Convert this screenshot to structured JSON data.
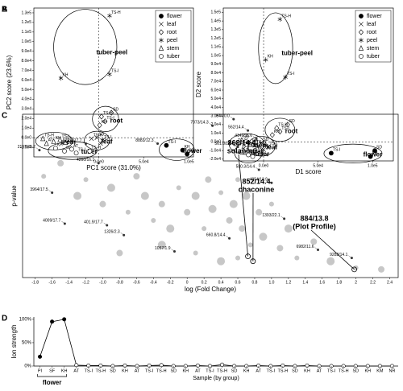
{
  "chart_data": [
    {
      "type": "pca",
      "panel_label": "A",
      "xlabel": "PC1 score (31.0%)",
      "ylabel": "PC2 score (23.6%)",
      "xlim": [
        -72000,
        105000
      ],
      "ylim": [
        -20000,
        135000
      ],
      "xticks": [
        {
          "value": 0,
          "label": "0.0e0"
        },
        {
          "value": 50000,
          "label": "5.0e4"
        },
        {
          "value": 100000,
          "label": "1.0e5"
        }
      ],
      "yticks": [
        {
          "value": -10000,
          "label": "-1.0e4"
        },
        {
          "value": 0,
          "label": "0.0e0"
        },
        {
          "value": 10000,
          "label": "1.0e4"
        },
        {
          "value": 20000,
          "label": "2.0e4"
        },
        {
          "value": 30000,
          "label": "3.0e4"
        },
        {
          "value": 40000,
          "label": "4.0e4"
        },
        {
          "value": 50000,
          "label": "5.0e4"
        },
        {
          "value": 60000,
          "label": "6.0e4"
        },
        {
          "value": 70000,
          "label": "7.0e4"
        },
        {
          "value": 80000,
          "label": "8.0e4"
        },
        {
          "value": 90000,
          "label": "9.0e4"
        },
        {
          "value": 100000,
          "label": "1.0e5"
        },
        {
          "value": 110000,
          "label": "1.1e5"
        },
        {
          "value": 120000,
          "label": "1.2e5"
        },
        {
          "value": 130000,
          "label": "1.3e5"
        }
      ],
      "hline": 0,
      "vline": 0,
      "legend": "upper right",
      "series": [
        {
          "name": "flower",
          "group": "flower",
          "marker": "filled-circle",
          "color": "#000000",
          "x": [
            75000,
            93000,
            98000
          ],
          "y": [
            -8000,
            -13000,
            -17000
          ],
          "labels": [
            "TS-I",
            "KH",
            "SD"
          ]
        },
        {
          "name": "leaf",
          "group": "leaf",
          "marker": "x",
          "color": "#000000",
          "x": [
            -8000,
            -2000,
            4000,
            2000
          ],
          "y": [
            -1000,
            0,
            -3000,
            -6000
          ],
          "labels": [
            "TS-H",
            "SD",
            "TS-I",
            "KH"
          ]
        },
        {
          "name": "root",
          "group": "root",
          "marker": "diamond",
          "color": "#000000",
          "x": [
            14000,
            3000,
            7000,
            1000
          ],
          "y": [
            26000,
            22000,
            17000,
            13000
          ],
          "labels": [
            "SD",
            "TS-H",
            "TS-I",
            "KH"
          ]
        },
        {
          "name": "peel",
          "group": "tuber-peel",
          "marker": "asterisk",
          "color": "#000000",
          "x": [
            12000,
            -42000,
            12000
          ],
          "y": [
            127000,
            62000,
            66000
          ],
          "labels": [
            "TS-H",
            "KH",
            "TS-I"
          ]
        },
        {
          "name": "stem",
          "group": "stem",
          "marker": "triangle",
          "color": "#000000",
          "x": [
            -62000,
            -58000,
            -50000,
            -43000,
            -37000
          ],
          "y": [
            -1000,
            -6000,
            -4000,
            -2000,
            -5000
          ],
          "labels": [
            "TS-H",
            "AT",
            "KH",
            "TS-I",
            "SD"
          ]
        },
        {
          "name": "tuber",
          "group": "tuber",
          "marker": "circle",
          "color": "#000000",
          "x": [
            -48000,
            -38000,
            -30000,
            -25000,
            -10000
          ],
          "y": [
            -11000,
            -14000,
            -12000,
            -16000,
            -14000
          ],
          "labels": [
            "KH",
            "SD",
            "AT",
            "TS-I",
            "TS-H"
          ]
        }
      ]
    },
    {
      "type": "pca",
      "panel_label": "B",
      "xlabel": "D1 score",
      "ylabel": "D2 score",
      "xlim": [
        -37000,
        119000
      ],
      "ylim": [
        -22000,
        155000
      ],
      "xticks": [
        {
          "value": 0,
          "label": "0.0e0"
        },
        {
          "value": 50000,
          "label": "5.0e4"
        },
        {
          "value": 100000,
          "label": "1.0e5"
        }
      ],
      "yticks": [
        {
          "value": -20000,
          "label": "-2.0e4"
        },
        {
          "value": -10000,
          "label": "-1.0e4"
        },
        {
          "value": 0,
          "label": "0.0e0"
        },
        {
          "value": 10000,
          "label": "1.0e4"
        },
        {
          "value": 20000,
          "label": "2.0e4"
        },
        {
          "value": 30000,
          "label": "3.0e4"
        },
        {
          "value": 40000,
          "label": "4.0e4"
        },
        {
          "value": 50000,
          "label": "5.0e4"
        },
        {
          "value": 60000,
          "label": "6.0e4"
        },
        {
          "value": 70000,
          "label": "7.0e4"
        },
        {
          "value": 80000,
          "label": "8.0e4"
        },
        {
          "value": 90000,
          "label": "9.0e4"
        },
        {
          "value": 100000,
          "label": "1.0e5"
        },
        {
          "value": 110000,
          "label": "1.1e5"
        },
        {
          "value": 120000,
          "label": "1.2e5"
        },
        {
          "value": 130000,
          "label": "1.3e5"
        },
        {
          "value": 140000,
          "label": "1.4e5"
        },
        {
          "value": 150000,
          "label": "1.5e5"
        }
      ],
      "hline": 0,
      "vline": 0,
      "legend": "upper right",
      "series": [
        {
          "name": "flower",
          "group": "flower",
          "marker": "filled-circle",
          "color": "#000000",
          "x": [
            62000,
            98000,
            102000
          ],
          "y": [
            -13000,
            -17000,
            -10000
          ],
          "labels": [
            "TS-I",
            "KH",
            "SD"
          ]
        },
        {
          "name": "leaf",
          "group": "leaf",
          "marker": "x",
          "color": "#000000",
          "x": [
            -8000,
            -2000,
            4000,
            0
          ],
          "y": [
            -4000,
            -1000,
            -6000,
            -9000
          ],
          "labels": [
            "TS-H",
            "SD",
            "TS-I",
            "KH"
          ]
        },
        {
          "name": "root",
          "group": "root",
          "marker": "diamond",
          "color": "#000000",
          "x": [
            22000,
            12000,
            15000,
            8000
          ],
          "y": [
            20000,
            16000,
            12000,
            8000
          ],
          "labels": [
            "SD",
            "TS-H",
            "TS-I",
            "KH"
          ]
        },
        {
          "name": "peel",
          "group": "tuber-peel",
          "marker": "asterisk",
          "color": "#000000",
          "x": [
            15000,
            2000,
            20000
          ],
          "y": [
            142000,
            95000,
            75000
          ],
          "labels": [
            "TS-H",
            "KH",
            "TS-I"
          ]
        },
        {
          "name": "stem",
          "group": "stem",
          "marker": "triangle",
          "color": "#000000",
          "x": [
            -25000,
            -18000,
            -12000,
            -6000,
            -20000
          ],
          "y": [
            -2000,
            -5000,
            -3000,
            -7000,
            2000
          ],
          "labels": [
            "TS-H",
            "AT",
            "KH",
            "TS-I",
            "SD"
          ]
        },
        {
          "name": "tuber",
          "group": "tuber",
          "marker": "circle",
          "color": "#000000",
          "x": [
            -20000,
            -14000,
            -8000,
            -16000,
            -10000
          ],
          "y": [
            -12000,
            -15000,
            -10000,
            -8000,
            -17000
          ],
          "labels": [
            "KH",
            "SD",
            "AT",
            "TS-I",
            "TS-H"
          ]
        }
      ]
    },
    {
      "type": "volcano",
      "panel_label": "C",
      "xlabel": "log (Fold Change)",
      "ylabel": "p-value",
      "xlim": [
        -1.95,
        2.5
      ],
      "ylim": [
        0,
        1
      ],
      "xticks": [
        -1.8,
        -1.6,
        -1.4,
        -1.2,
        {
          "value": -1,
          "label": "-1.0"
        },
        -0.8,
        -0.6,
        -0.4,
        -0.2,
        0,
        0.2,
        0.4,
        0.6,
        0.8,
        {
          "value": 1,
          "label": "1.0"
        },
        1.2,
        1.4,
        1.6,
        1.8,
        2,
        2.2,
        2.4
      ],
      "points": {
        "color": "#999999",
        "x": [
          -1.7,
          -1.5,
          -1.3,
          -1.2,
          -1.0,
          -0.9,
          -0.7,
          -0.6,
          -0.5,
          -0.4,
          -0.3,
          -0.2,
          -0.1,
          0.0,
          0.1,
          0.2,
          0.25,
          0.3,
          0.4,
          0.5,
          0.55,
          0.6,
          0.65,
          0.7,
          0.75,
          0.85,
          0.9,
          1.0,
          1.1,
          1.2,
          1.3,
          1.5,
          1.7,
          2.0,
          2.3,
          0.4,
          0.6,
          -0.8,
          -0.3,
          0.1
        ],
        "y": [
          0.62,
          0.7,
          0.5,
          0.6,
          0.45,
          0.55,
          0.4,
          0.62,
          0.5,
          0.35,
          0.45,
          0.3,
          0.55,
          0.4,
          0.5,
          0.3,
          0.6,
          0.42,
          0.52,
          0.35,
          0.45,
          0.6,
          0.3,
          0.5,
          0.2,
          0.4,
          0.25,
          0.45,
          0.18,
          0.3,
          0.12,
          0.22,
          0.1,
          0.06,
          0.05,
          0.1,
          0.12,
          0.15,
          0.2,
          0.15
        ]
      },
      "labeled": {
        "labels": [
          "874/0.0",
          "7073/14.3",
          "562/14.4",
          "4149/11.6",
          "8883/12.3",
          "561.0/14.4",
          "621.9/17.7",
          "2197/25.2",
          "4260/16.1",
          "4161/14.9",
          "580.3/14.4",
          "4354/13.9",
          "3964/17.5",
          "4009/17.7",
          "1326/2.3",
          "401.9/17.7",
          "1057/1.9",
          "660.8/14.4",
          "1393/22.1",
          "6982/11.6",
          "9282/14.1"
        ],
        "x": [
          0.55,
          0.3,
          0.72,
          0.82,
          -0.35,
          0.6,
          -1.2,
          -1.75,
          -1.05,
          0.95,
          0.85,
          1.0,
          -1.6,
          -1.45,
          -0.75,
          -0.95,
          -0.15,
          0.5,
          1.15,
          1.55,
          1.95
        ],
        "y": [
          0.97,
          0.93,
          0.9,
          0.85,
          0.82,
          0.8,
          0.82,
          0.78,
          0.7,
          0.75,
          0.66,
          0.58,
          0.52,
          0.33,
          0.26,
          0.32,
          0.16,
          0.24,
          0.36,
          0.17,
          0.12
        ]
      },
      "highlights": [
        {
          "label": "868/14.4",
          "name": "solanine",
          "x": 0.72,
          "y": 0.13
        },
        {
          "label": "852/14.4",
          "name": "chaconine",
          "x": 0.78,
          "y": 0.1
        },
        {
          "label": "884/13.8",
          "name": "(Plot Profile)",
          "x": 1.98,
          "y": 0.05
        }
      ]
    },
    {
      "type": "line",
      "panel_label": "D",
      "xlabel": "Sample (by group)",
      "ylabel": "Ion strength",
      "group_label": "flower",
      "ylim": [
        0,
        105
      ],
      "yticks": [
        {
          "value": 0,
          "label": "0%"
        },
        {
          "value": 50,
          "label": "50%"
        },
        {
          "value": 100,
          "label": "100%"
        }
      ],
      "categories": [
        "PI",
        "SF",
        "KH",
        "AT",
        "TS-I",
        "TS-H",
        "SD",
        "KH",
        "AT",
        "TS-I",
        "TS-H",
        "SD",
        "KH",
        "AT",
        "TS-I",
        "TS-H",
        "SD",
        "KH",
        "AT",
        "TS-I",
        "TS-H",
        "SD",
        "KH",
        "AT",
        "TS-I",
        "TS-H",
        "SD",
        "KH",
        "KM",
        "NR"
      ],
      "values": [
        20,
        95,
        100,
        2,
        1,
        1,
        0,
        1,
        0,
        1,
        2,
        0,
        0,
        1,
        0,
        3,
        0,
        0,
        1,
        0,
        1,
        0,
        1,
        0,
        0,
        0,
        0,
        0,
        0,
        0
      ],
      "color": "#000000"
    }
  ]
}
